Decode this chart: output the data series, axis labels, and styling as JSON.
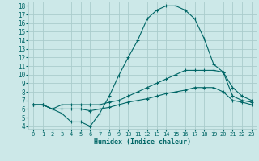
{
  "title": "",
  "xlabel": "Humidex (Indice chaleur)",
  "xlim": [
    -0.5,
    23.5
  ],
  "ylim": [
    3.7,
    18.5
  ],
  "yticks": [
    4,
    5,
    6,
    7,
    8,
    9,
    10,
    11,
    12,
    13,
    14,
    15,
    16,
    17,
    18
  ],
  "xticks": [
    0,
    1,
    2,
    3,
    4,
    5,
    6,
    7,
    8,
    9,
    10,
    11,
    12,
    13,
    14,
    15,
    16,
    17,
    18,
    19,
    20,
    21,
    22,
    23
  ],
  "bg_color": "#cce8e8",
  "grid_color": "#aacccc",
  "line_color": "#006666",
  "line1_x": [
    0,
    1,
    2,
    3,
    4,
    5,
    6,
    7,
    8,
    9,
    10,
    11,
    12,
    13,
    14,
    15,
    16,
    17,
    18,
    19,
    20,
    21,
    22,
    23
  ],
  "line1_y": [
    6.5,
    6.5,
    6.0,
    5.5,
    4.5,
    4.5,
    4.0,
    5.5,
    7.5,
    9.9,
    12.0,
    14.0,
    16.5,
    17.5,
    18.0,
    18.0,
    17.5,
    16.5,
    14.2,
    11.2,
    10.3,
    8.5,
    7.5,
    7.0
  ],
  "line2_x": [
    0,
    1,
    2,
    3,
    4,
    5,
    6,
    7,
    8,
    9,
    10,
    11,
    12,
    13,
    14,
    15,
    16,
    17,
    18,
    19,
    20,
    21,
    22,
    23
  ],
  "line2_y": [
    6.5,
    6.5,
    6.0,
    6.5,
    6.5,
    6.5,
    6.5,
    6.5,
    6.8,
    7.0,
    7.5,
    8.0,
    8.5,
    9.0,
    9.5,
    10.0,
    10.5,
    10.5,
    10.5,
    10.5,
    10.3,
    7.5,
    7.0,
    6.8
  ],
  "line3_x": [
    0,
    1,
    2,
    3,
    4,
    5,
    6,
    7,
    8,
    9,
    10,
    11,
    12,
    13,
    14,
    15,
    16,
    17,
    18,
    19,
    20,
    21,
    22,
    23
  ],
  "line3_y": [
    6.5,
    6.5,
    6.0,
    6.0,
    6.0,
    6.0,
    5.8,
    6.0,
    6.2,
    6.5,
    6.8,
    7.0,
    7.2,
    7.5,
    7.8,
    8.0,
    8.2,
    8.5,
    8.5,
    8.5,
    8.0,
    7.0,
    6.8,
    6.5
  ]
}
